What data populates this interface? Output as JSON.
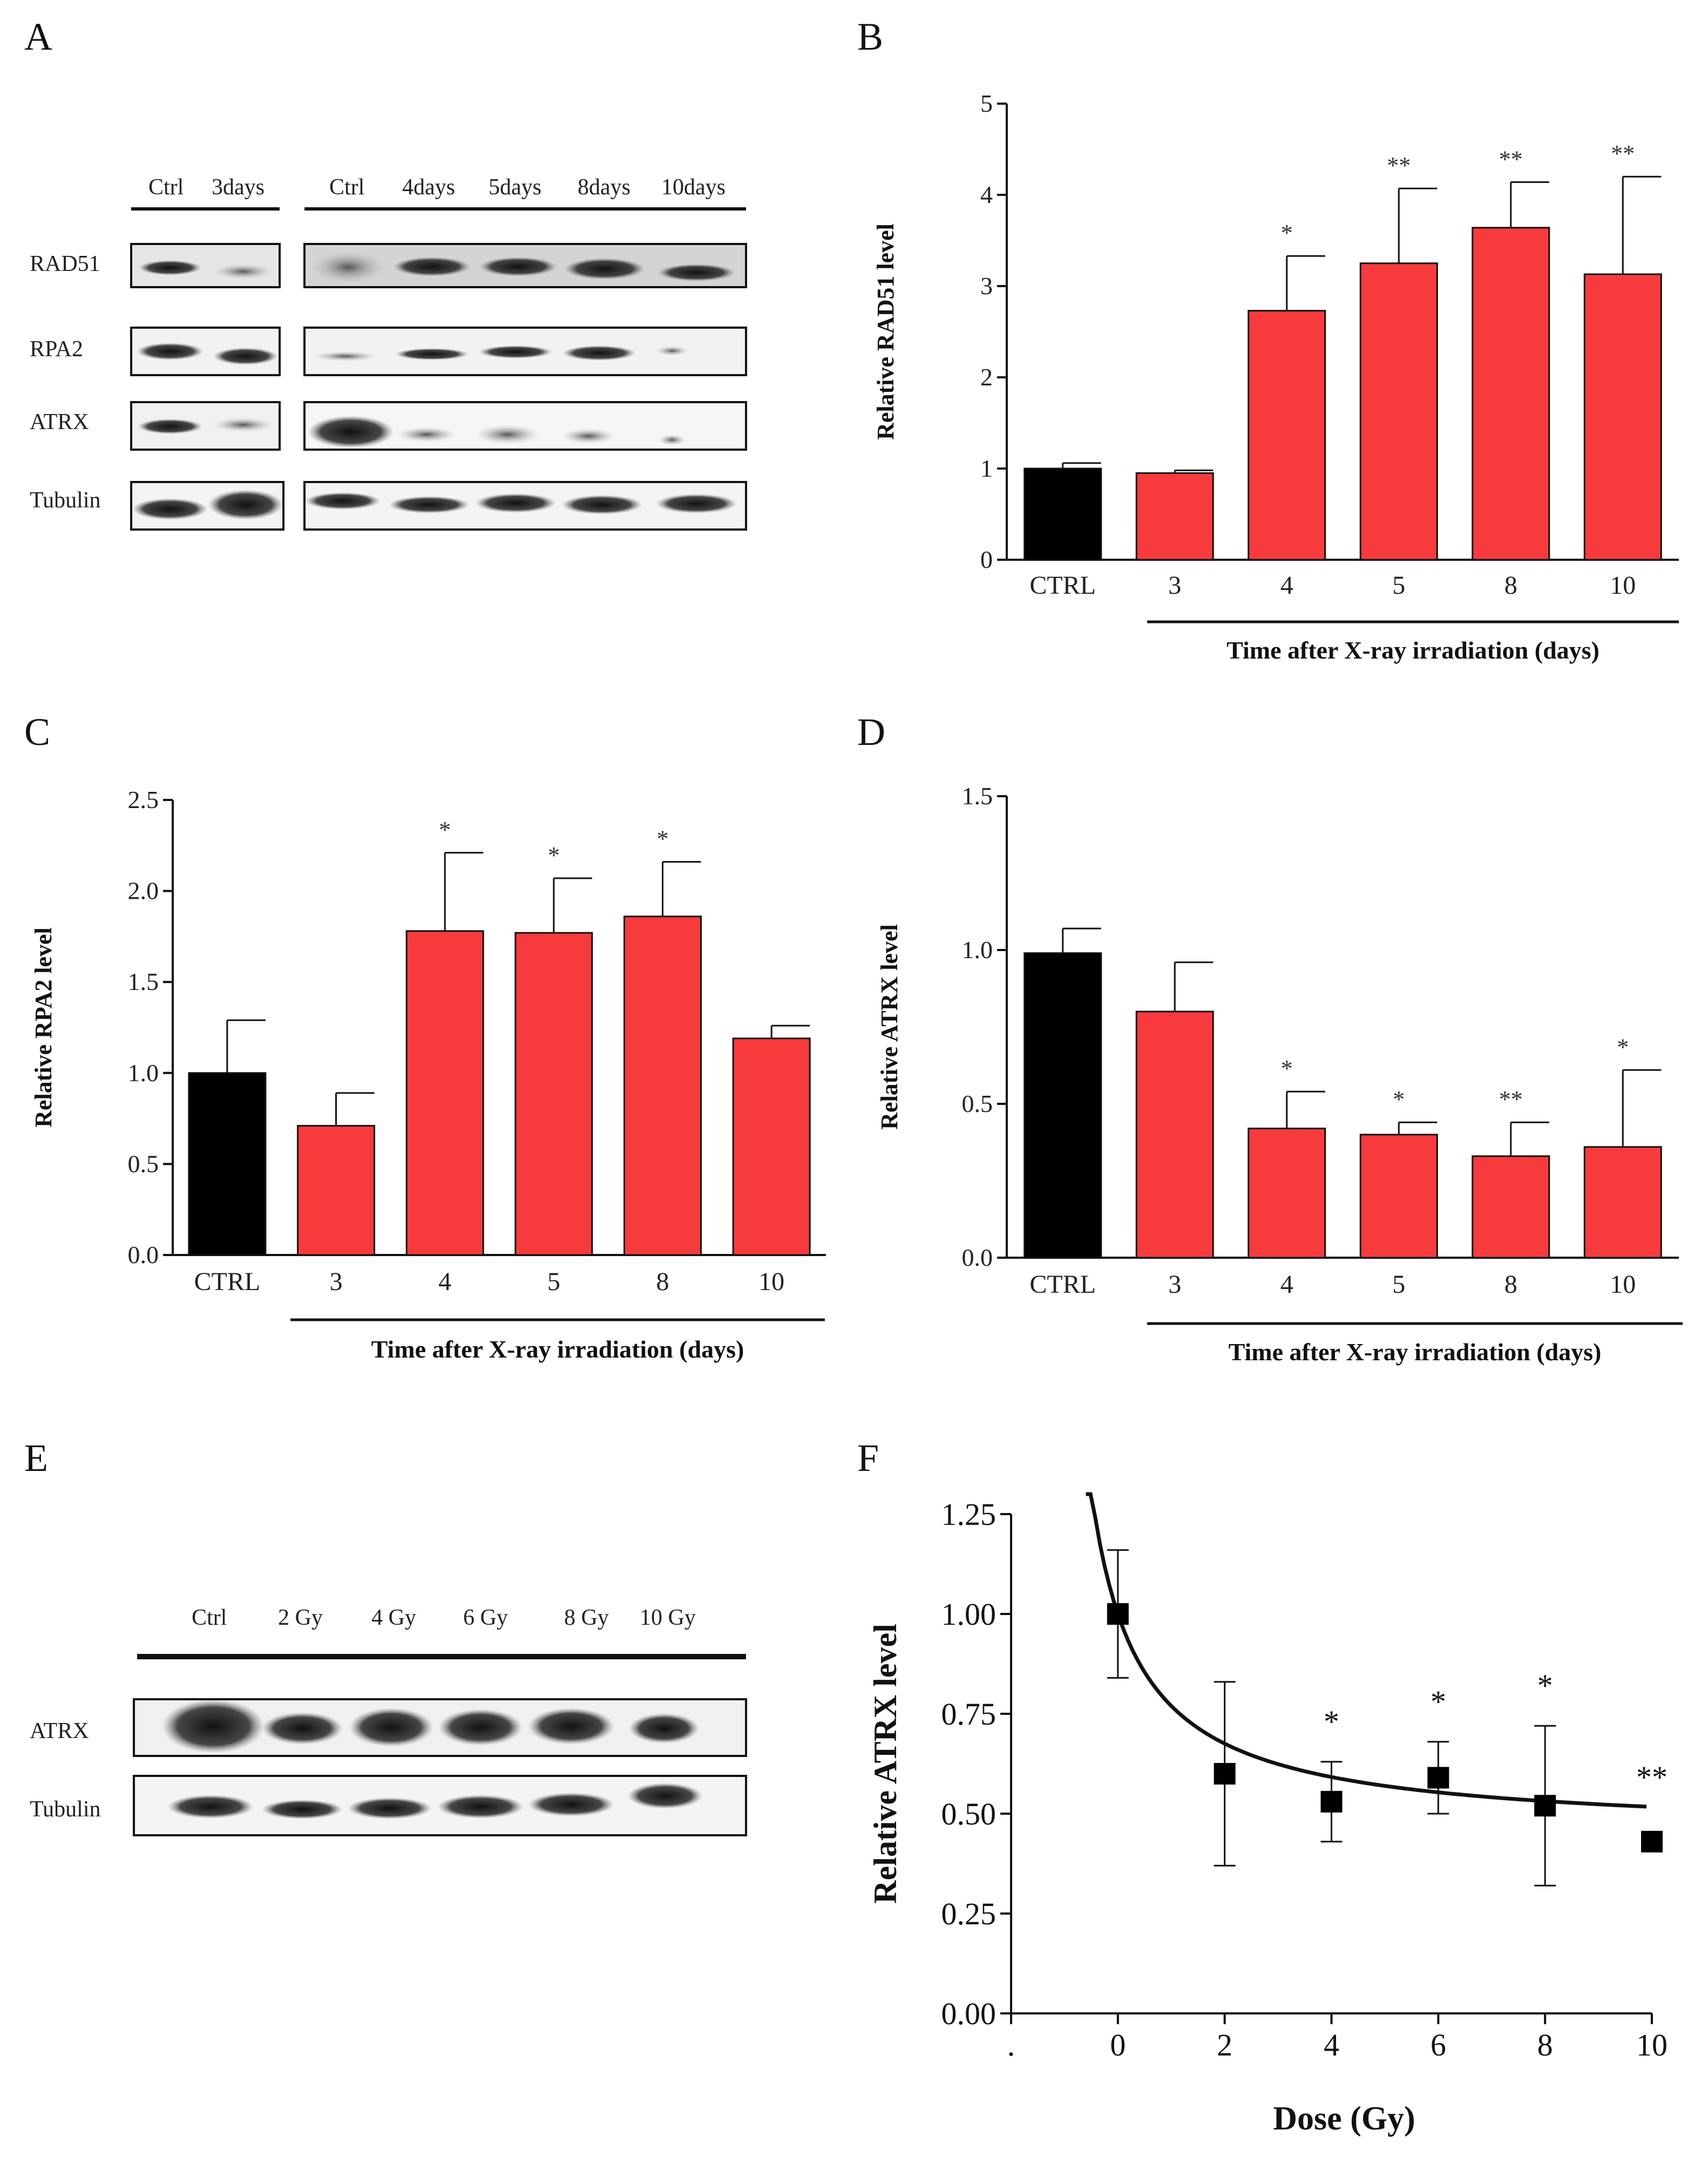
{
  "panel_labels": {
    "A": "A",
    "B": "B",
    "C": "C",
    "D": "D",
    "E": "E",
    "F": "F"
  },
  "blot_a": {
    "group1_lanes": [
      "Ctrl",
      "3days"
    ],
    "group2_lanes": [
      "Ctrl",
      "4days",
      "5days",
      "8days",
      "10days"
    ],
    "rows": [
      "RAD51",
      "RPA2",
      "ATRX",
      "Tubulin"
    ]
  },
  "blot_e": {
    "lanes": [
      "Ctrl",
      "2 Gy",
      "4 Gy",
      "6 Gy",
      "8 Gy",
      "10 Gy"
    ],
    "rows": [
      "ATRX",
      "Tubulin"
    ]
  },
  "colors": {
    "control": "#000000",
    "treated": "#f73b3d",
    "line": "#111111"
  },
  "chart_data": [
    {
      "panel": "B",
      "type": "bar",
      "categories": [
        "CTRL",
        "3",
        "4",
        "5",
        "8",
        "10"
      ],
      "values": [
        1.0,
        0.95,
        2.73,
        3.25,
        3.64,
        3.13
      ],
      "errors": [
        0.06,
        0.03,
        0.6,
        0.82,
        0.5,
        1.07
      ],
      "significance": [
        "",
        "",
        "*",
        "**",
        "**",
        "**"
      ],
      "ylim": [
        0,
        5
      ],
      "yticks": [
        "0",
        "1",
        "2",
        "3",
        "4",
        "5"
      ],
      "ylabel": "Relative RAD51 level",
      "xlabel": "Time after X-ray irradiation (days)"
    },
    {
      "panel": "C",
      "type": "bar",
      "categories": [
        "CTRL",
        "3",
        "4",
        "5",
        "8",
        "10"
      ],
      "values": [
        1.0,
        0.71,
        1.78,
        1.77,
        1.86,
        1.19
      ],
      "errors": [
        0.29,
        0.18,
        0.43,
        0.3,
        0.3,
        0.07
      ],
      "significance": [
        "",
        "",
        "*",
        "*",
        "*",
        ""
      ],
      "ylim": [
        0,
        2.5
      ],
      "yticks": [
        "0.0",
        "0.5",
        "1.0",
        "1.5",
        "2.0",
        "2.5"
      ],
      "ylabel": "Relative RPA2 level",
      "xlabel": "Time after X-ray irradiation (days)"
    },
    {
      "panel": "D",
      "type": "bar",
      "categories": [
        "CTRL",
        "3",
        "4",
        "5",
        "8",
        "10"
      ],
      "values": [
        0.99,
        0.8,
        0.42,
        0.4,
        0.33,
        0.36
      ],
      "errors": [
        0.08,
        0.16,
        0.12,
        0.04,
        0.11,
        0.25
      ],
      "significance": [
        "",
        "",
        "*",
        "*",
        "**",
        "*"
      ],
      "ylim": [
        0,
        1.5
      ],
      "yticks": [
        "0.0",
        "0.5",
        "1.0",
        "1.5"
      ],
      "ylabel": "Relative ATRX level",
      "xlabel": "Time after X-ray irradiation (days)"
    },
    {
      "panel": "F",
      "type": "scatter",
      "x": [
        0,
        2,
        4,
        6,
        8,
        10
      ],
      "y": [
        1.0,
        0.6,
        0.53,
        0.59,
        0.52,
        0.43
      ],
      "errors": [
        0.16,
        0.23,
        0.1,
        0.09,
        0.2,
        0.0
      ],
      "significance": [
        "",
        "",
        "*",
        "*",
        "*",
        "**"
      ],
      "fit_curve": "decay",
      "xlim": [
        -2,
        10
      ],
      "ylim": [
        0,
        1.25
      ],
      "xticks": [
        ".",
        "0",
        "2",
        "4",
        "6",
        "8",
        "10"
      ],
      "yticks": [
        "0.00",
        "0.25",
        "0.50",
        "0.75",
        "1.00",
        "1.25"
      ],
      "ylabel": "Relative ATRX level",
      "xlabel": "Dose (Gy)"
    }
  ]
}
